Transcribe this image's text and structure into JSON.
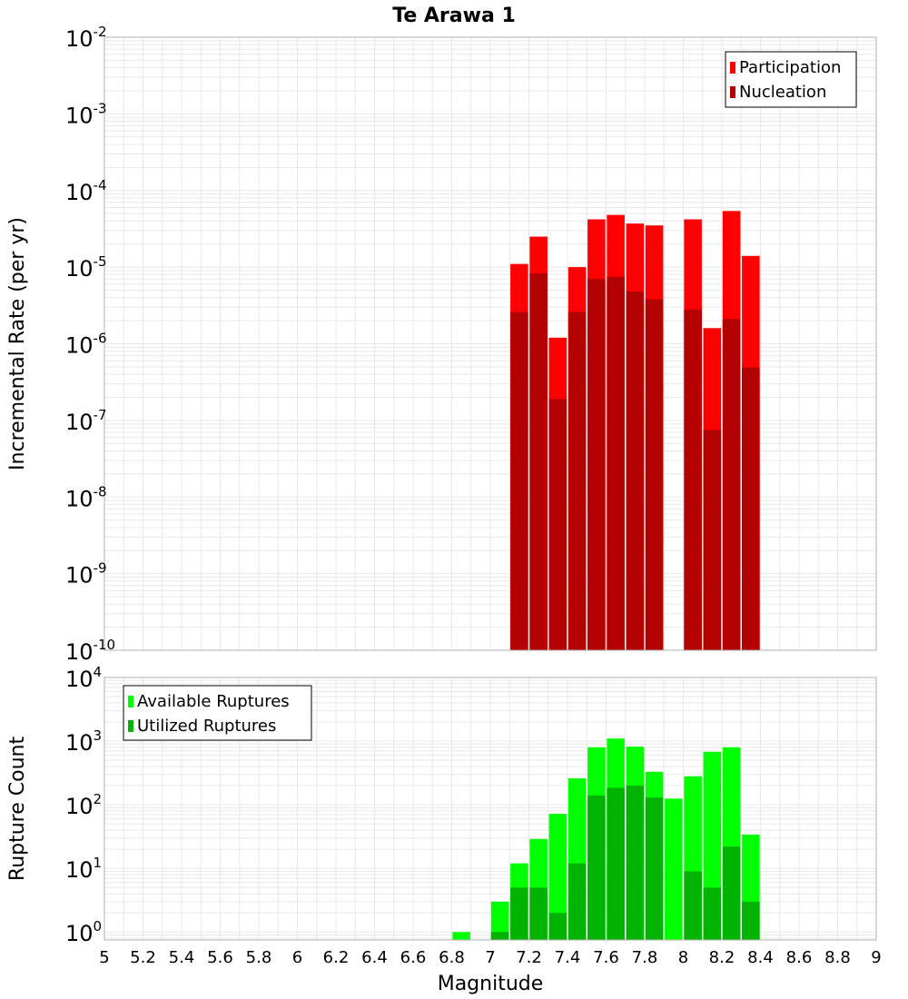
{
  "chart_data": [
    {
      "type": "bar",
      "title": "Te Arawa 1",
      "xlabel": "",
      "ylabel": "Incremental Rate (per yr)",
      "yscale": "log",
      "ylim": [
        1e-10,
        0.01
      ],
      "xlim": [
        5,
        9
      ],
      "y_ticks": [
        {
          "base": "10",
          "exp": "-10"
        },
        {
          "base": "10",
          "exp": "-9"
        },
        {
          "base": "10",
          "exp": "-8"
        },
        {
          "base": "10",
          "exp": "-7"
        },
        {
          "base": "10",
          "exp": "-6"
        },
        {
          "base": "10",
          "exp": "-5"
        },
        {
          "base": "10",
          "exp": "-4"
        },
        {
          "base": "10",
          "exp": "-3"
        },
        {
          "base": "10",
          "exp": "-2"
        }
      ],
      "grid": true,
      "legend_position": "top-right",
      "x": [
        7.15,
        7.25,
        7.35,
        7.45,
        7.55,
        7.65,
        7.75,
        7.85,
        8.05,
        8.15,
        8.25,
        8.35
      ],
      "series": [
        {
          "name": "Participation",
          "color": "#ff0000",
          "values": [
            1.1e-05,
            2.5e-05,
            1.2e-06,
            1e-05,
            4.2e-05,
            4.8e-05,
            3.7e-05,
            3.5e-05,
            4.2e-05,
            1.6e-06,
            5.4e-05,
            1.4e-05
          ]
        },
        {
          "name": "Nucleation",
          "color": "#b30000",
          "values": [
            2.6e-06,
            8.3e-06,
            1.9e-07,
            2.6e-06,
            7e-06,
            7.5e-06,
            4.8e-06,
            3.8e-06,
            2.8e-06,
            7.5e-08,
            2.1e-06,
            4.9e-07
          ]
        }
      ]
    },
    {
      "type": "bar",
      "title": "",
      "xlabel": "Magnitude",
      "ylabel": "Rupture Count",
      "yscale": "log",
      "ylim": [
        0.75,
        10000
      ],
      "xlim": [
        5,
        9
      ],
      "x_ticks": [
        "5",
        "5.2",
        "5.4",
        "5.6",
        "5.8",
        "6",
        "6.2",
        "6.4",
        "6.6",
        "6.8",
        "7",
        "7.2",
        "7.4",
        "7.6",
        "7.8",
        "8",
        "8.2",
        "8.4",
        "8.6",
        "8.8",
        "9"
      ],
      "y_ticks": [
        {
          "base": "10",
          "exp": "0"
        },
        {
          "base": "10",
          "exp": "1"
        },
        {
          "base": "10",
          "exp": "2"
        },
        {
          "base": "10",
          "exp": "3"
        },
        {
          "base": "10",
          "exp": "4"
        }
      ],
      "grid": true,
      "legend_position": "top-left",
      "x": [
        6.85,
        7.05,
        7.15,
        7.25,
        7.35,
        7.45,
        7.55,
        7.65,
        7.75,
        7.85,
        7.95,
        8.05,
        8.15,
        8.25,
        8.35
      ],
      "series": [
        {
          "name": "Available Ruptures",
          "color": "#00ff00",
          "values": [
            1,
            3,
            12,
            29,
            72,
            260,
            800,
            1100,
            820,
            330,
            125,
            280,
            680,
            800,
            34
          ]
        },
        {
          "name": "Utilized Ruptures",
          "color": "#00b300",
          "values": [
            0,
            1,
            5,
            5,
            2,
            12,
            140,
            185,
            200,
            130,
            0,
            9,
            5,
            22,
            3
          ]
        }
      ]
    }
  ]
}
